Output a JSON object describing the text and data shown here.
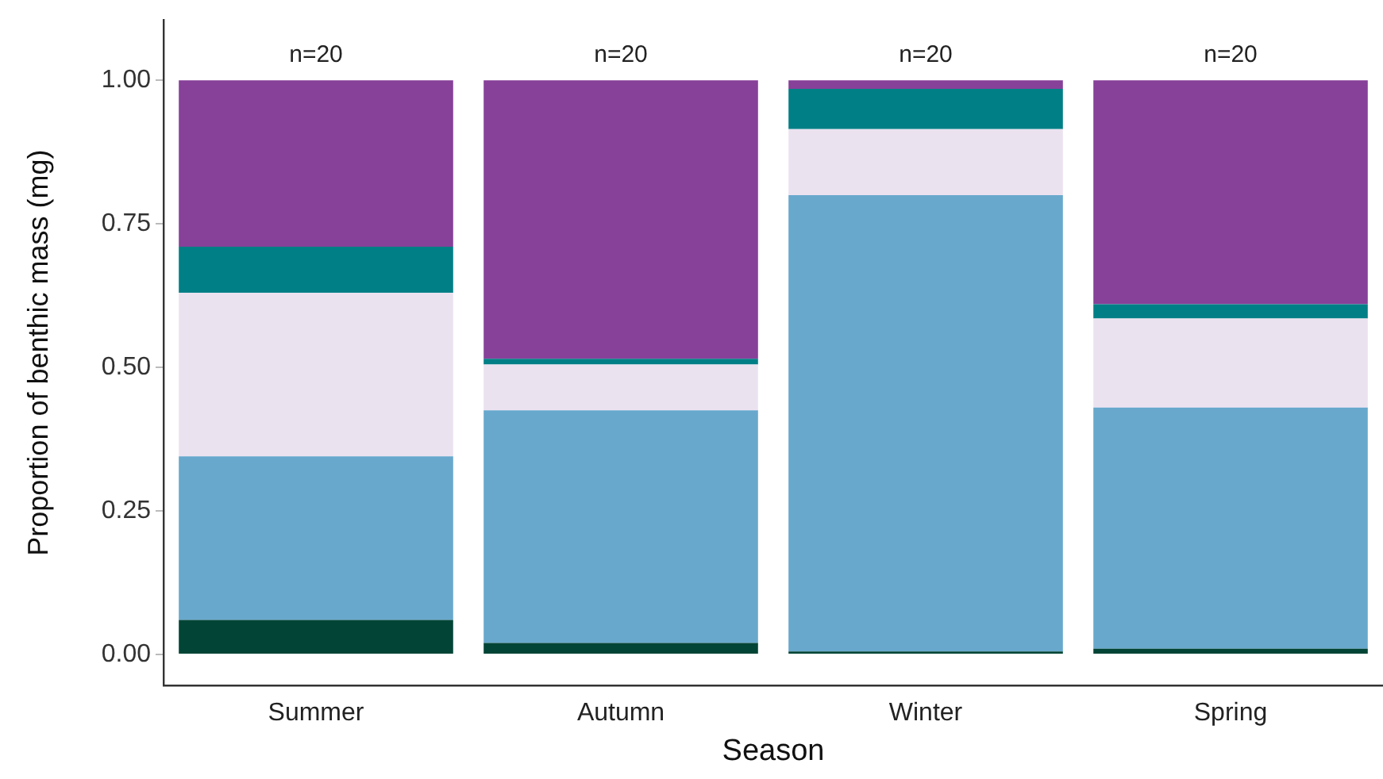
{
  "chart_data": {
    "type": "bar",
    "stacked": true,
    "xlabel": "Season",
    "ylabel": "Proportion of benthic mass (mg)",
    "categories": [
      "Summer",
      "Autumn",
      "Winter",
      "Spring"
    ],
    "series": [
      {
        "color": "#024536",
        "values": [
          0.06,
          0.02,
          0.005,
          0.01
        ]
      },
      {
        "color": "#68a8cd",
        "values": [
          0.285,
          0.405,
          0.795,
          0.42
        ]
      },
      {
        "color": "#ebe2f0",
        "values": [
          0.285,
          0.08,
          0.115,
          0.155
        ]
      },
      {
        "color": "#007f86",
        "values": [
          0.08,
          0.01,
          0.07,
          0.025
        ]
      },
      {
        "color": "#874199",
        "values": [
          0.29,
          0.485,
          0.015,
          0.39
        ]
      }
    ],
    "ylim": [
      -0.054,
      1.105
    ],
    "yticks": [
      {
        "value": 0,
        "label": "0.00"
      },
      {
        "value": 0.25,
        "label": "0.25"
      },
      {
        "value": 0.5,
        "label": "0.50"
      },
      {
        "value": 0.75,
        "label": "0.75"
      },
      {
        "value": 1,
        "label": "1.00"
      }
    ],
    "grid": false,
    "legend": false,
    "annotations": [
      {
        "text": "n=20",
        "x": "Summer",
        "y": 1
      },
      {
        "text": "n=20",
        "x": "Autumn",
        "y": 1
      },
      {
        "text": "n=20",
        "x": "Winter",
        "y": 1
      },
      {
        "text": "n=20",
        "x": "Spring",
        "y": 1
      }
    ]
  }
}
